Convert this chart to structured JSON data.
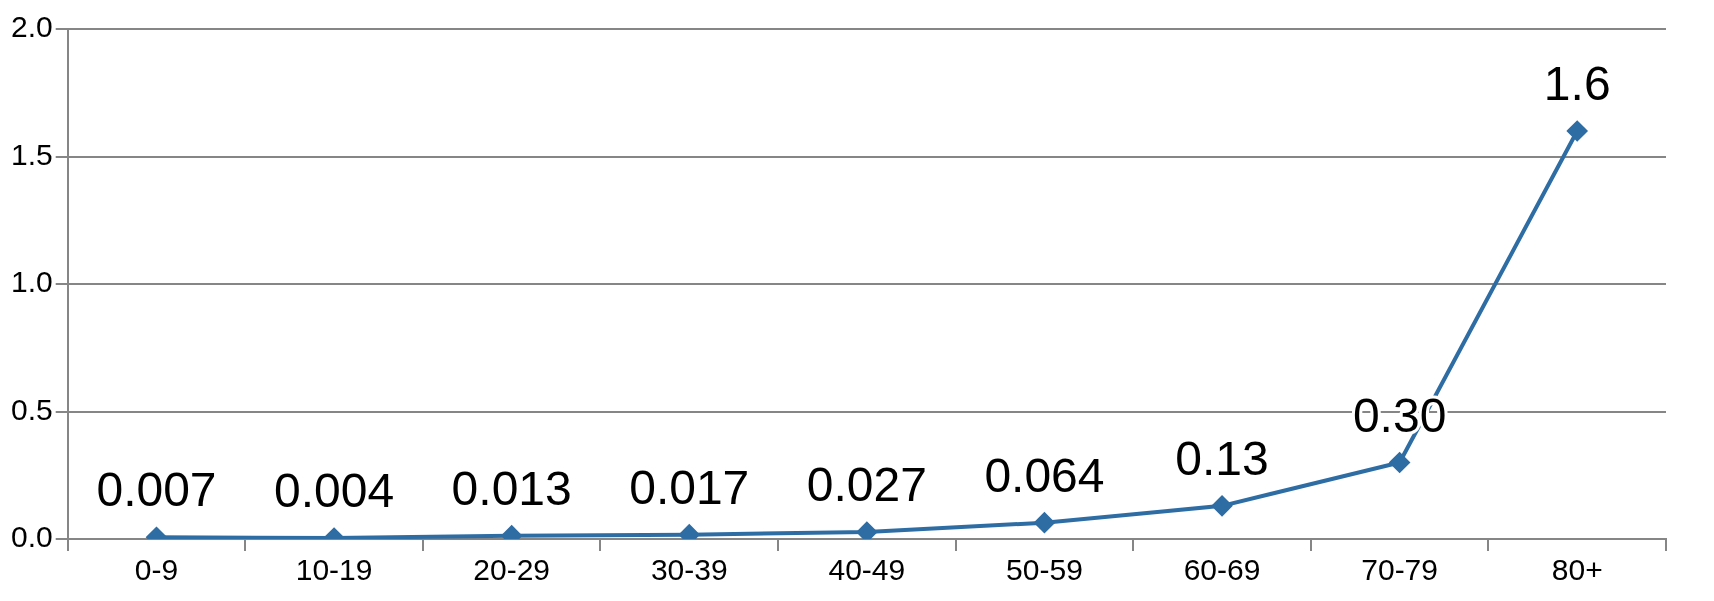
{
  "chart_data": {
    "type": "line",
    "categories": [
      "0-9",
      "10-19",
      "20-29",
      "30-39",
      "40-49",
      "50-59",
      "60-69",
      "70-79",
      "80+"
    ],
    "series": [
      {
        "color": "#2e6da4",
        "values": [
          0.007,
          0.004,
          0.013,
          0.017,
          0.027,
          0.064,
          0.13,
          0.3,
          1.6
        ],
        "value_labels": [
          "0.007",
          "0.004",
          "0.013",
          "0.017",
          "0.027",
          "0.064",
          "0.13",
          "0.30",
          "1.6"
        ]
      }
    ],
    "ylim": [
      0,
      2
    ],
    "yticks": [
      {
        "value": 0,
        "label": "0.0"
      },
      {
        "value": 0.5,
        "label": "0.5"
      },
      {
        "value": 1,
        "label": "1.0"
      },
      {
        "value": 1.5,
        "label": "1.5"
      },
      {
        "value": 2,
        "label": "2.0"
      }
    ],
    "grid": "y",
    "legend": false,
    "marker": "diamond",
    "line_style": "solid"
  }
}
